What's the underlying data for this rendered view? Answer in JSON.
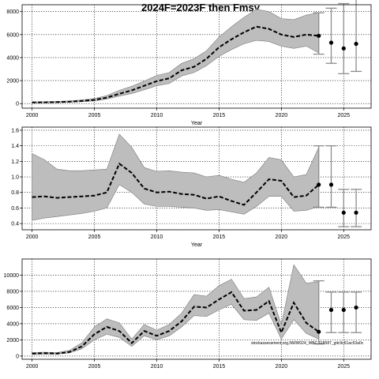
{
  "chart_data": [
    {
      "type": "line",
      "title": "2024F=2023F then Fmsy",
      "xlabel": "Year",
      "ylabel": "",
      "xlim": [
        1999.2,
        2027.2
      ],
      "ylim": [
        -400,
        8600
      ],
      "xticks": [
        2000,
        2005,
        2010,
        2015,
        2020,
        2025
      ],
      "yticks": [
        0,
        2000,
        4000,
        6000,
        8000
      ],
      "ytick_labels": [
        "0",
        "2000",
        "4000",
        "6000",
        "8000"
      ],
      "grid": true,
      "x": [
        2000,
        2001,
        2002,
        2003,
        2004,
        2005,
        2006,
        2007,
        2008,
        2009,
        2010,
        2011,
        2012,
        2013,
        2014,
        2015,
        2016,
        2017,
        2018,
        2019,
        2020,
        2021,
        2022,
        2023
      ],
      "median": [
        100,
        110,
        130,
        160,
        230,
        320,
        520,
        850,
        1150,
        1550,
        1950,
        2200,
        2900,
        3200,
        3900,
        4900,
        5600,
        6200,
        6700,
        6500,
        6000,
        5800,
        6000,
        5900
      ],
      "lower": [
        60,
        70,
        85,
        110,
        160,
        230,
        400,
        650,
        880,
        1200,
        1550,
        1750,
        2400,
        2700,
        3300,
        4100,
        4700,
        5200,
        5500,
        5400,
        5000,
        4800,
        5000,
        4400
      ],
      "upper": [
        150,
        165,
        190,
        230,
        320,
        440,
        700,
        1150,
        1500,
        1950,
        2450,
        2700,
        3500,
        3900,
        4600,
        5800,
        6700,
        7500,
        8200,
        8000,
        7400,
        7300,
        7700,
        7900
      ],
      "projection": [
        {
          "x": 2023,
          "value": 5900,
          "lower": 4300,
          "upper": 7900
        },
        {
          "x": 2024,
          "value": 5300,
          "lower": 3500,
          "upper": 8300
        },
        {
          "x": 2025,
          "value": 4800,
          "lower": 2600,
          "upper": 8700
        },
        {
          "x": 2026,
          "value": 5200,
          "lower": 2800,
          "upper": 9500
        }
      ]
    },
    {
      "type": "line",
      "title": "",
      "xlabel": "Year",
      "ylabel": "",
      "xlim": [
        1999.2,
        2027.2
      ],
      "ylim": [
        0.32,
        1.64
      ],
      "xticks": [
        2000,
        2005,
        2010,
        2015,
        2020,
        2025
      ],
      "yticks": [
        0.4,
        0.6,
        0.8,
        1.0,
        1.2,
        1.4,
        1.6
      ],
      "ytick_labels": [
        "0.4",
        "0.6",
        "0.8",
        "1.0",
        "1.2",
        "1.4",
        "1.6"
      ],
      "grid": true,
      "x": [
        2000,
        2001,
        2002,
        2003,
        2004,
        2005,
        2006,
        2007,
        2008,
        2009,
        2010,
        2011,
        2012,
        2013,
        2014,
        2015,
        2016,
        2017,
        2018,
        2019,
        2020,
        2021,
        2022,
        2023
      ],
      "median": [
        0.74,
        0.75,
        0.73,
        0.74,
        0.75,
        0.76,
        0.8,
        1.17,
        1.05,
        0.85,
        0.8,
        0.81,
        0.78,
        0.77,
        0.72,
        0.75,
        0.69,
        0.64,
        0.8,
        0.97,
        0.95,
        0.74,
        0.76,
        0.9
      ],
      "lower": [
        0.44,
        0.47,
        0.49,
        0.51,
        0.53,
        0.56,
        0.6,
        0.9,
        0.8,
        0.65,
        0.62,
        0.62,
        0.61,
        0.6,
        0.57,
        0.58,
        0.55,
        0.52,
        0.62,
        0.75,
        0.75,
        0.56,
        0.57,
        0.62
      ],
      "upper": [
        1.3,
        1.22,
        1.1,
        1.08,
        1.08,
        1.09,
        1.1,
        1.55,
        1.38,
        1.12,
        1.07,
        1.08,
        1.06,
        1.05,
        1.0,
        1.02,
        0.97,
        0.93,
        1.05,
        1.25,
        1.22,
        1.0,
        1.03,
        1.38
      ],
      "projection": [
        {
          "x": 2023,
          "value": 0.9,
          "lower": 0.61,
          "upper": 1.4
        },
        {
          "x": 2024,
          "value": 0.9,
          "lower": 0.61,
          "upper": 1.4
        },
        {
          "x": 2025,
          "value": 0.54,
          "lower": 0.36,
          "upper": 0.84
        },
        {
          "x": 2026,
          "value": 0.54,
          "lower": 0.36,
          "upper": 0.84
        }
      ]
    },
    {
      "type": "line",
      "title": "",
      "xlabel": "",
      "ylabel": "",
      "xlim": [
        1999.2,
        2027.2
      ],
      "ylim": [
        -400,
        12000
      ],
      "xticks": [
        2000,
        2005,
        2010,
        2015,
        2020,
        2025
      ],
      "yticks": [
        0,
        2000,
        4000,
        6000,
        8000,
        10000
      ],
      "ytick_labels": [
        "0",
        "2000",
        "4000",
        "6000",
        "8000",
        "10000"
      ],
      "grid": true,
      "x": [
        2000,
        2001,
        2002,
        2003,
        2004,
        2005,
        2006,
        2007,
        2008,
        2009,
        2010,
        2011,
        2012,
        2013,
        2014,
        2015,
        2016,
        2017,
        2018,
        2019,
        2020,
        2021,
        2022,
        2023
      ],
      "median": [
        300,
        350,
        300,
        500,
        1200,
        2700,
        3600,
        3100,
        1600,
        3100,
        2500,
        3100,
        4300,
        6100,
        6000,
        7000,
        7900,
        5600,
        5700,
        6800,
        2900,
        6600,
        4100,
        3000
      ],
      "lower": [
        200,
        250,
        220,
        380,
        900,
        2000,
        2700,
        2300,
        1200,
        2500,
        2000,
        2500,
        3600,
        5000,
        4900,
        5700,
        6400,
        4500,
        4400,
        5300,
        2100,
        4500,
        2800,
        2100
      ],
      "upper": [
        420,
        480,
        420,
        700,
        1650,
        3600,
        4600,
        4100,
        2100,
        3900,
        3200,
        3900,
        5300,
        7600,
        7400,
        8700,
        9500,
        7100,
        7300,
        8500,
        3900,
        11300,
        9000,
        9200
      ],
      "projection": [
        {
          "x": 2023,
          "value": 3000,
          "lower": 1500,
          "upper": 9300
        },
        {
          "x": 2024,
          "value": 5700,
          "lower": 2900,
          "upper": 7900
        },
        {
          "x": 2025,
          "value": 5700,
          "lower": 2900,
          "upper": 7900
        },
        {
          "x": 2026,
          "value": 6000,
          "lower": 2900,
          "upper": 7900
        }
      ],
      "annotation": "stockassessment.org,NWW024_WBC,118587_gitc9c61ac53a0c"
    }
  ]
}
